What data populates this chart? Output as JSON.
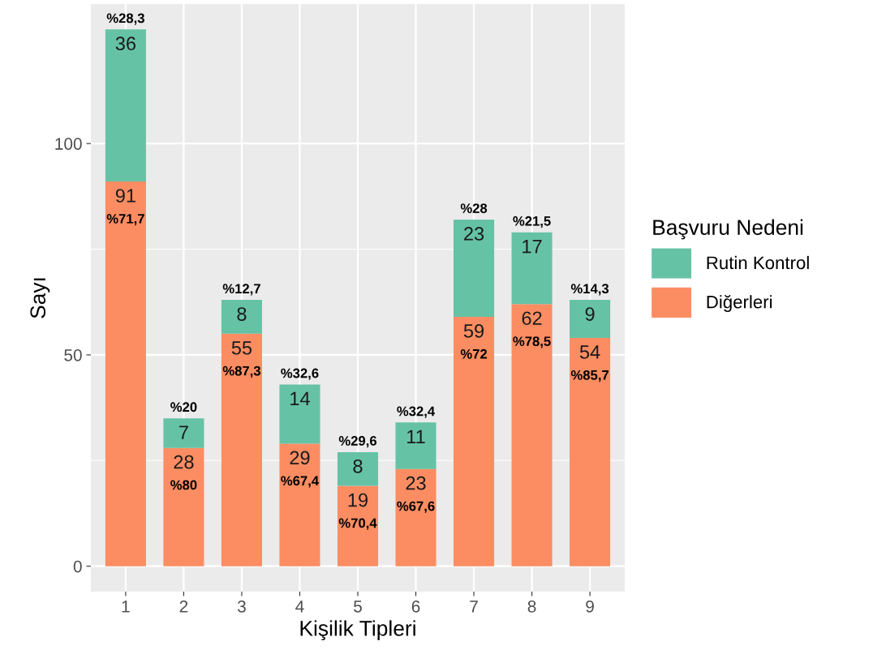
{
  "chart_data": {
    "type": "bar",
    "stacked": true,
    "xlabel": "Kişilik Tipleri",
    "ylabel": "Sayı",
    "legend_title": "Başvuru Nedeni",
    "legend": "right",
    "grid": true,
    "data_labels": true,
    "categories": [
      "1",
      "2",
      "3",
      "4",
      "5",
      "6",
      "7",
      "8",
      "9"
    ],
    "ylim": [
      -6,
      133
    ],
    "yticks": [
      0,
      {
        "value": 25,
        "label": null
      },
      50,
      {
        "value": 75,
        "label": null
      },
      100
    ],
    "series": [
      {
        "name": "Diğerleri",
        "color": "#fc8d62",
        "values": [
          91,
          28,
          55,
          29,
          19,
          23,
          59,
          62,
          54
        ]
      },
      {
        "name": "Rutin Kontrol",
        "color": "#66c2a5",
        "values": [
          36,
          7,
          8,
          14,
          8,
          11,
          23,
          17,
          9
        ]
      }
    ],
    "annotations": [
      {
        "text": "%28,3",
        "x": "1",
        "y": 127
      },
      {
        "text": "%71,7",
        "x": "1",
        "y": 91
      },
      {
        "text": "%20",
        "x": "2",
        "y": 35
      },
      {
        "text": "%80",
        "x": "2",
        "y": 28
      },
      {
        "text": "%12,7",
        "x": "3",
        "y": 63
      },
      {
        "text": "%87,3",
        "x": "3",
        "y": 55
      },
      {
        "text": "%32,6",
        "x": "4",
        "y": 43
      },
      {
        "text": "%67,4",
        "x": "4",
        "y": 29
      },
      {
        "text": "%29,6",
        "x": "5",
        "y": 27
      },
      {
        "text": "%70,4",
        "x": "5",
        "y": 19
      },
      {
        "text": "%32,4",
        "x": "6",
        "y": 34
      },
      {
        "text": "%67,6",
        "x": "6",
        "y": 23
      },
      {
        "text": "%28",
        "x": "7",
        "y": 82
      },
      {
        "text": "%72",
        "x": "7",
        "y": 59
      },
      {
        "text": "%21,5",
        "x": "8",
        "y": 79
      },
      {
        "text": "%78,5",
        "x": "8",
        "y": 62
      },
      {
        "text": "%14,3",
        "x": "9",
        "y": 63
      },
      {
        "text": "%85,7",
        "x": "9",
        "y": 54
      }
    ]
  }
}
